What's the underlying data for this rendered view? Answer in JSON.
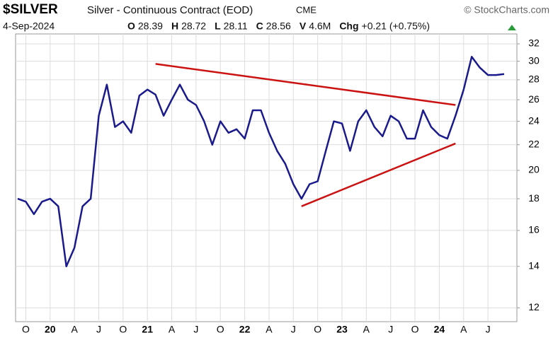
{
  "header": {
    "symbol": "$SILVER",
    "name": "Silver - Continuous Contract (EOD)",
    "exchange": "CME",
    "source": "© StockCharts.com",
    "date": "4-Sep-2024",
    "stats": [
      {
        "label": "O",
        "value": 28.39
      },
      {
        "label": "H",
        "value": 28.72
      },
      {
        "label": "L",
        "value": 28.11
      },
      {
        "label": "C",
        "value": 28.56
      },
      {
        "label": "V",
        "value": "4.6M"
      },
      {
        "label": "Chg",
        "value": "+0.21 (+0.75%)"
      }
    ]
  },
  "chart_data": {
    "type": "line",
    "log_scale": true,
    "grid": true,
    "x": [
      "2019-09",
      "2019-10",
      "2019-11",
      "2019-12",
      "2020-01",
      "2020-02",
      "2020-03",
      "2020-04",
      "2020-05",
      "2020-06",
      "2020-07",
      "2020-08",
      "2020-09",
      "2020-10",
      "2020-11",
      "2020-12",
      "2021-01",
      "2021-02",
      "2021-03",
      "2021-04",
      "2021-05",
      "2021-06",
      "2021-07",
      "2021-08",
      "2021-09",
      "2021-10",
      "2021-11",
      "2021-12",
      "2022-01",
      "2022-02",
      "2022-03",
      "2022-04",
      "2022-05",
      "2022-06",
      "2022-07",
      "2022-08",
      "2022-09",
      "2022-10",
      "2022-11",
      "2022-12",
      "2023-01",
      "2023-02",
      "2023-03",
      "2023-04",
      "2023-05",
      "2023-06",
      "2023-07",
      "2023-08",
      "2023-09",
      "2023-10",
      "2023-11",
      "2023-12",
      "2024-01",
      "2024-02",
      "2024-03",
      "2024-04",
      "2024-05",
      "2024-06",
      "2024-07",
      "2024-08",
      "2024-09"
    ],
    "series": [
      {
        "name": "$SILVER",
        "color": "#1a1a8c",
        "values": [
          18.0,
          17.8,
          17.0,
          17.8,
          18.0,
          17.5,
          14.0,
          15.0,
          17.5,
          18.0,
          24.5,
          27.5,
          23.5,
          24.0,
          23.0,
          26.4,
          27.0,
          26.5,
          24.5,
          26.0,
          27.5,
          26.0,
          25.5,
          24.0,
          22.0,
          24.0,
          23.0,
          23.3,
          22.5,
          25.0,
          25.0,
          23.0,
          21.5,
          20.5,
          19.0,
          18.0,
          19.0,
          19.2,
          21.5,
          24.0,
          23.8,
          21.5,
          24.0,
          25.0,
          23.5,
          22.7,
          24.5,
          24.0,
          22.5,
          22.5,
          25.0,
          23.5,
          22.8,
          22.5,
          24.5,
          27.0,
          30.5,
          29.3,
          28.5,
          28.5,
          28.6
        ]
      }
    ],
    "trendlines": [
      {
        "color": "#cc1111",
        "x": [
          "2021-02",
          "2024-03"
        ],
        "values": [
          29.7,
          25.5
        ]
      },
      {
        "color": "#cc1111",
        "x": [
          "2022-08",
          "2024-03"
        ],
        "values": [
          17.5,
          22.1
        ]
      }
    ],
    "ylim": [
      11.4,
      33.2
    ],
    "yticks": [
      12,
      14,
      16,
      18,
      20,
      22,
      24,
      26,
      28,
      30,
      32
    ],
    "xticks": [
      {
        "value": "2019-10",
        "label": "O"
      },
      {
        "value": "2020-01",
        "label": "20"
      },
      {
        "value": "2020-04",
        "label": "A"
      },
      {
        "value": "2020-07",
        "label": "J"
      },
      {
        "value": "2020-10",
        "label": "O"
      },
      {
        "value": "2021-01",
        "label": "21"
      },
      {
        "value": "2021-04",
        "label": "A"
      },
      {
        "value": "2021-07",
        "label": "J"
      },
      {
        "value": "2021-10",
        "label": "O"
      },
      {
        "value": "2022-01",
        "label": "22"
      },
      {
        "value": "2022-04",
        "label": "A"
      },
      {
        "value": "2022-07",
        "label": "J"
      },
      {
        "value": "2022-10",
        "label": "O"
      },
      {
        "value": "2023-01",
        "label": "23"
      },
      {
        "value": "2023-04",
        "label": "A"
      },
      {
        "value": "2023-07",
        "label": "J"
      },
      {
        "value": "2023-10",
        "label": "O"
      },
      {
        "value": "2024-01",
        "label": "24"
      },
      {
        "value": "2024-04",
        "label": "A"
      },
      {
        "value": "2024-07",
        "label": "J"
      }
    ]
  }
}
